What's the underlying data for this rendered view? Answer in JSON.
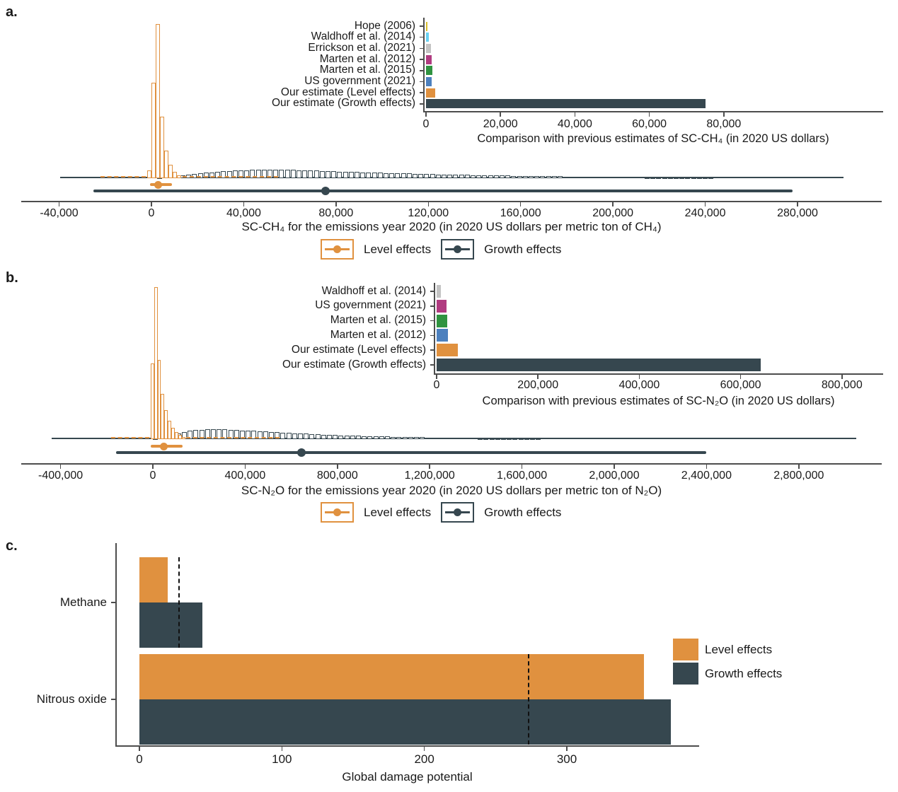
{
  "colors": {
    "level": "#E0913F",
    "growth": "#36474F",
    "axis": "#4d4d4d",
    "text": "#1a1a1a",
    "dashed_reference": "#111111"
  },
  "legend_labels": {
    "level": "Level effects",
    "growth": "Growth effects"
  },
  "chart_data": [
    {
      "id": "panel-a-main",
      "panel_letter": "a.",
      "type": "area",
      "title": "",
      "xlabel": "SC-CH₄ for the emissions year 2020 (in 2020 US dollars per metric ton of CH₄)",
      "xlim": [
        -55000,
        316000
      ],
      "grid": false,
      "legend_position": "bottom",
      "x_tick_values": [
        -40000,
        0,
        40000,
        80000,
        120000,
        160000,
        200000,
        240000,
        280000
      ],
      "x_tick_labels": [
        "-40,000",
        "0",
        "40,000",
        "80,000",
        "120,000",
        "160,000",
        "200,000",
        "240,000",
        "280,000"
      ],
      "series": [
        {
          "name": "Level effects",
          "role": "level",
          "histogram": {
            "bin_start": -1850,
            "bin_width": 1850,
            "rel_heights": [
              0.05,
              0.62,
              1.0,
              0.4,
              0.18,
              0.085,
              0.04,
              0.018
            ]
          },
          "pointrange": {
            "point": 2800,
            "low": -500,
            "high": 9000
          },
          "dash_tails": [
            [
              -22000,
              -2500
            ],
            [
              13500,
              55000
            ]
          ]
        },
        {
          "name": "Growth effects",
          "role": "growth",
          "density": {
            "x": [
              0,
              10000,
              20000,
              30000,
              40000,
              50000,
              60000,
              70000,
              80000,
              90000,
              100000,
              120000,
              140000,
              160000,
              180000,
              200000,
              220000,
              240000,
              260000,
              280000,
              300000
            ],
            "rel": [
              0.02,
              0.25,
              0.55,
              0.8,
              0.95,
              1.0,
              0.97,
              0.9,
              0.8,
              0.72,
              0.63,
              0.48,
              0.36,
              0.27,
              0.2,
              0.15,
              0.11,
              0.08,
              0.06,
              0.045,
              0.035
            ]
          },
          "pointrange": {
            "point": 75500,
            "low": -25000,
            "high": 278000
          },
          "envelope": [
            -39500,
            300000
          ]
        }
      ]
    },
    {
      "id": "panel-a-inset",
      "type": "bar",
      "orientation": "horizontal",
      "xlabel": "Comparison with previous estimates of SC-CH₄ (in 2020 US dollars)",
      "xlim": [
        0,
        92000
      ],
      "categories": [
        "Hope (2006)",
        "Waldhoff et al. (2014)",
        "Errickson et al. (2021)",
        "Marten et al. (2012)",
        "Marten et al. (2015)",
        "US government (2021)",
        "Our estimate (Level effects)",
        "Our estimate (Growth effects)"
      ],
      "values": [
        400,
        800,
        1300,
        1600,
        1800,
        1600,
        2400,
        75000
      ],
      "bar_colors": [
        "#D8BF2E",
        "#69D1F2",
        "#C3C3C3",
        "#B03B80",
        "#2F9340",
        "#4C80BE",
        "#E0913F",
        "#36474F"
      ],
      "x_tick_values": [
        0,
        20000,
        40000,
        60000,
        80000
      ],
      "x_tick_labels": [
        "0",
        "20,000",
        "40,000",
        "60,000",
        "80,000"
      ]
    },
    {
      "id": "panel-b-main",
      "panel_letter": "b.",
      "type": "area",
      "title": "",
      "xlabel": "SC-N₂O for the emissions year 2020 (in 2020 US dollars per metric ton of N₂O)",
      "xlim": [
        -570000,
        3160000
      ],
      "grid": false,
      "legend_position": "bottom",
      "x_tick_values": [
        -400000,
        0,
        400000,
        800000,
        1200000,
        1600000,
        2000000,
        2400000,
        2800000
      ],
      "x_tick_labels": [
        "-400,000",
        "0",
        "400,000",
        "800,000",
        "1,200,000",
        "1,600,000",
        "2,000,000",
        "2,400,000",
        "2,800,000"
      ],
      "series": [
        {
          "name": "Level effects",
          "role": "level",
          "histogram": {
            "bin_start": -10000,
            "bin_width": 15000,
            "rel_heights": [
              0.5,
              1.0,
              0.52,
              0.3,
              0.19,
              0.12,
              0.075,
              0.045,
              0.028,
              0.015
            ]
          },
          "pointrange": {
            "point": 49000,
            "low": -10000,
            "high": 130000
          },
          "dash_tails": [
            [
              -180000,
              -15000
            ],
            [
              145000,
              550000
            ]
          ]
        },
        {
          "name": "Growth effects",
          "role": "growth",
          "density": {
            "x": [
              0,
              50000,
              100000,
              150000,
              200000,
              250000,
              300000,
              350000,
              400000,
              500000,
              600000,
              700000,
              800000,
              900000,
              1000000,
              1200000,
              1400000,
              1600000,
              1800000,
              2000000,
              2200000,
              2400000,
              2600000,
              2800000,
              3000000
            ],
            "rel": [
              0.03,
              0.2,
              0.5,
              0.8,
              0.95,
              1.0,
              0.98,
              0.93,
              0.88,
              0.75,
              0.62,
              0.5,
              0.4,
              0.32,
              0.26,
              0.17,
              0.11,
              0.075,
              0.05,
              0.035,
              0.025,
              0.018,
              0.012,
              0.008,
              0.005
            ]
          },
          "pointrange": {
            "point": 643000,
            "low": -160000,
            "high": 2400000
          },
          "envelope": [
            -440000,
            3050000
          ]
        }
      ]
    },
    {
      "id": "panel-b-inset",
      "type": "bar",
      "orientation": "horizontal",
      "xlabel": "Comparison with previous estimates of SC-N₂O (in 2020 US dollars)",
      "xlim": [
        0,
        880000
      ],
      "categories": [
        "Waldhoff et al. (2014)",
        "US government (2021)",
        "Marten et al. (2015)",
        "Marten et al. (2012)",
        "Our estimate (Level effects)",
        "Our estimate (Growth effects)"
      ],
      "values": [
        8000,
        20000,
        21000,
        22000,
        42000,
        640000
      ],
      "bar_colors": [
        "#C3C3C3",
        "#B03B80",
        "#2F9340",
        "#4C80BE",
        "#E0913F",
        "#36474F"
      ],
      "x_tick_values": [
        0,
        200000,
        400000,
        600000,
        800000
      ],
      "x_tick_labels": [
        "0",
        "200,000",
        "400,000",
        "600,000",
        "800,000"
      ]
    },
    {
      "id": "panel-c",
      "panel_letter": "c.",
      "type": "bar",
      "orientation": "horizontal",
      "xlabel": "Global damage potential",
      "xlim": [
        0,
        392
      ],
      "categories": [
        "Methane",
        "Nitrous oxide"
      ],
      "series": [
        {
          "name": "Level effects",
          "values": [
            20,
            354
          ]
        },
        {
          "name": "Growth effects",
          "values": [
            44,
            373
          ]
        }
      ],
      "gwp_dashed_values": [
        28,
        273
      ],
      "x_tick_values": [
        0,
        100,
        200,
        300
      ],
      "x_tick_labels": [
        "0",
        "100",
        "200",
        "300"
      ]
    }
  ]
}
